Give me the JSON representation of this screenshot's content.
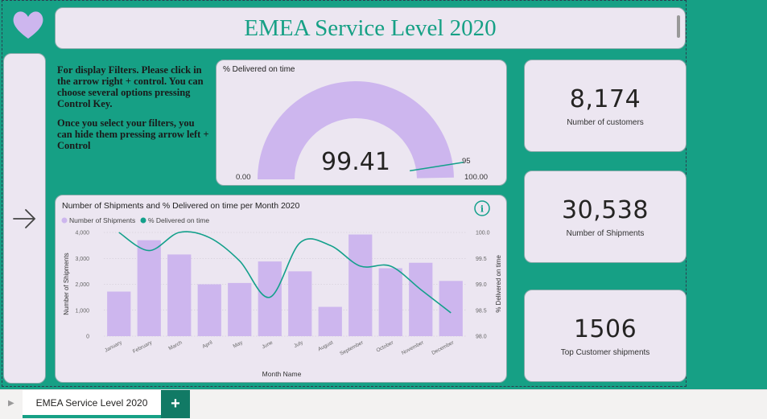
{
  "page": {
    "title": "EMEA Service Level 2020",
    "accent_color": "#16a085",
    "card_color": "#ece6f1",
    "bar_color": "#cdb6ee"
  },
  "icons": {
    "heart": "heart-icon",
    "arrow": "arrow-right-icon",
    "info": "info-icon"
  },
  "instructions": {
    "para1": "For display Filters. Please click in the arrow right + control. You can choose several options pressing Control Key.",
    "para2": "Once you select your filters, you can hide them pressing arrow left + Control"
  },
  "gauge": {
    "title": "% Delivered on time",
    "value": "99.41",
    "min": "0.00",
    "max": "100.00",
    "target": "95",
    "value_num": 99.41,
    "target_num": 95,
    "min_num": 0,
    "max_num": 100
  },
  "kpis": [
    {
      "value": "8,174",
      "label": "Number of customers"
    },
    {
      "value": "30,538",
      "label": "Number of Shipments"
    },
    {
      "value": "1506",
      "label": "Top Customer shipments"
    }
  ],
  "chart_data": {
    "type": "bar",
    "title": "Number of Shipments and % Delivered on time per Month 2020",
    "xlabel": "Month Name",
    "ylabel": "Number of Shipments",
    "y2label": "% Delivered on time",
    "legend_position": "top-left",
    "categories": [
      "January",
      "February",
      "March",
      "April",
      "May",
      "June",
      "July",
      "August",
      "September",
      "October",
      "November",
      "December"
    ],
    "series": [
      {
        "name": "Number of Shipments",
        "kind": "bar",
        "axis": "left",
        "color": "#cdb6ee",
        "values": [
          1720,
          3700,
          3150,
          2000,
          2050,
          2880,
          2500,
          1130,
          3920,
          2620,
          2830,
          2130
        ]
      },
      {
        "name": "% Delivered on time",
        "kind": "line",
        "axis": "right",
        "color": "#13a08b",
        "values": [
          100.0,
          99.65,
          100.0,
          99.9,
          99.45,
          98.75,
          99.8,
          99.75,
          99.35,
          99.35,
          98.9,
          98.45
        ]
      }
    ],
    "ylim": [
      0,
      4000
    ],
    "y2lim": [
      98.0,
      100.0
    ],
    "yticks": [
      "0",
      "1,000",
      "2,000",
      "3,000",
      "4,000"
    ],
    "y2ticks": [
      "98.0",
      "98.5",
      "99.0",
      "99.5",
      "100.0"
    ],
    "grid": true
  },
  "tabs": {
    "active": "EMEA Service Level 2020",
    "add": "+",
    "nav": "▶"
  }
}
